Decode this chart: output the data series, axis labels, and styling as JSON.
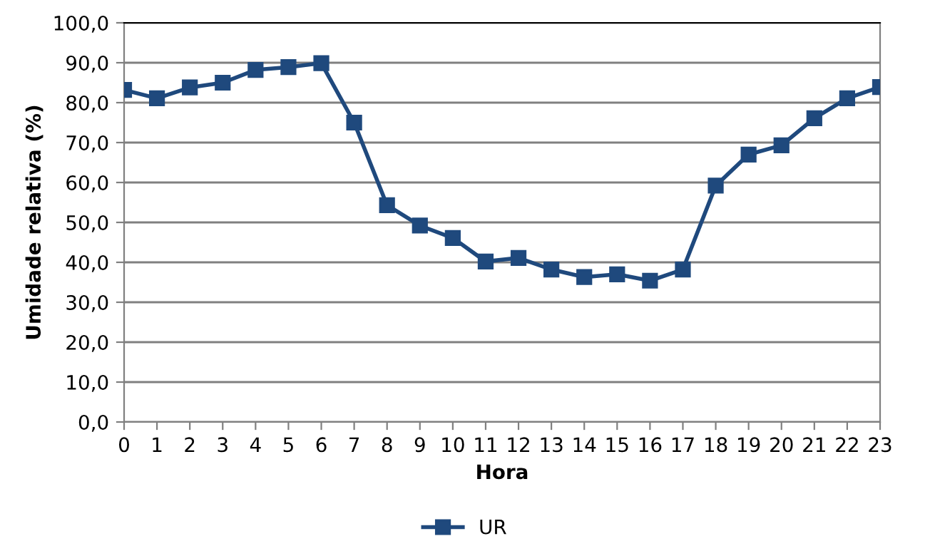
{
  "chart_data": {
    "type": "line",
    "xlabel": "Hora",
    "ylabel": "Umidade relativa (%)",
    "x": [
      0,
      1,
      2,
      3,
      4,
      5,
      6,
      7,
      8,
      9,
      10,
      11,
      12,
      13,
      14,
      15,
      16,
      17,
      18,
      19,
      20,
      21,
      22,
      23
    ],
    "series": [
      {
        "name": "UR",
        "color": "#1f497d",
        "values": [
          83.2,
          81.1,
          83.8,
          85.0,
          88.2,
          88.9,
          89.9,
          75.0,
          54.3,
          49.2,
          46.1,
          40.2,
          41.1,
          38.2,
          36.3,
          37.0,
          35.4,
          38.2,
          59.2,
          67.0,
          69.3,
          76.1,
          81.1,
          83.9
        ]
      }
    ],
    "xlim": [
      0,
      23
    ],
    "xticks": [
      0,
      1,
      2,
      3,
      4,
      5,
      6,
      7,
      8,
      9,
      10,
      11,
      12,
      13,
      14,
      15,
      16,
      17,
      18,
      19,
      20,
      21,
      22,
      23
    ],
    "ylim": [
      0,
      100
    ],
    "yticks": [
      {
        "value": 0,
        "label": "0,0"
      },
      {
        "value": 10,
        "label": "10,0"
      },
      {
        "value": 20,
        "label": "20,0"
      },
      {
        "value": 30,
        "label": "30,0"
      },
      {
        "value": 40,
        "label": "40,0"
      },
      {
        "value": 50,
        "label": "50,0"
      },
      {
        "value": 60,
        "label": "60,0"
      },
      {
        "value": 70,
        "label": "70,0"
      },
      {
        "value": 80,
        "label": "80,0"
      },
      {
        "value": 90,
        "label": "90,0"
      },
      {
        "value": 100,
        "label": "100,0"
      }
    ],
    "grid": "y",
    "legend": "bottom",
    "marker": "square",
    "line_style": "solid"
  }
}
